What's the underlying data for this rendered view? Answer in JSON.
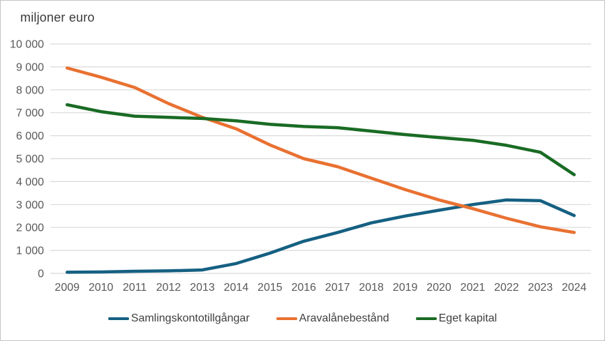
{
  "chart": {
    "title": "miljoner euro"
  },
  "chart_data": {
    "type": "line",
    "title": "miljoner euro",
    "categories": [
      "2009",
      "2010",
      "2011",
      "2012",
      "2013",
      "2014",
      "2015",
      "2016",
      "2017",
      "2018",
      "2019",
      "2020",
      "2021",
      "2022",
      "2023",
      "2024"
    ],
    "series": [
      {
        "name": "Samlingskontotillgångar",
        "color": "#156082",
        "values": [
          50,
          60,
          90,
          110,
          150,
          430,
          880,
          1400,
          1780,
          2200,
          2500,
          2750,
          3000,
          3200,
          3170,
          2520
        ]
      },
      {
        "name": "Aravalånebestånd",
        "color": "#E97132",
        "values": [
          8950,
          8550,
          8100,
          7400,
          6800,
          6300,
          5600,
          5000,
          4650,
          4150,
          3650,
          3200,
          2820,
          2400,
          2030,
          1780
        ]
      },
      {
        "name": "Eget kapital",
        "color": "#196B24",
        "values": [
          7350,
          7050,
          6850,
          6800,
          6750,
          6650,
          6500,
          6400,
          6350,
          6200,
          6050,
          5920,
          5800,
          5580,
          5280,
          4300
        ]
      }
    ],
    "ylim": [
      0,
      10000
    ],
    "y_tick_step": 1000,
    "y_tick_labels": [
      "0",
      "1 000",
      "2 000",
      "3 000",
      "4 000",
      "5 000",
      "6 000",
      "7 000",
      "8 000",
      "9 000",
      "10 000"
    ],
    "xlabel": "",
    "ylabel": "",
    "grid": "horizontal",
    "legend_position": "bottom-center",
    "colors": {
      "gridline": "#d9d9d9",
      "axis_text": "#595959",
      "title_text": "#3a3a3a",
      "legend_text": "#404040",
      "background": "#ffffff",
      "border": "#c3c3c3"
    }
  }
}
